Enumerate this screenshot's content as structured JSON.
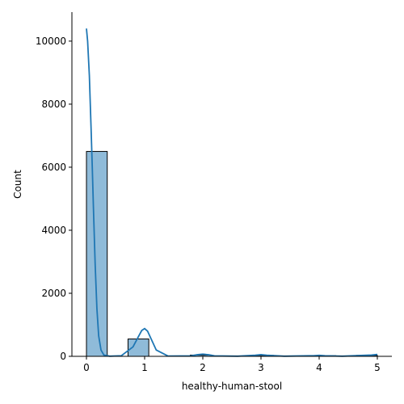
{
  "chart_data": {
    "type": "histogram",
    "xlabel": "healthy-human-stool",
    "ylabel": "Count",
    "bins": [
      0,
      0.3571,
      0.7143,
      1.0714,
      1.4286,
      1.7857,
      2.1429,
      2.5,
      2.8571,
      3.2143,
      3.5714,
      3.9286,
      4.2857,
      4.6429,
      5
    ],
    "counts": [
      6500,
      0,
      550,
      0,
      0,
      40,
      0,
      0,
      30,
      0,
      0,
      20,
      0,
      30
    ],
    "color": "#8fbbd9",
    "edgecolor": "#000000",
    "kde": {
      "color": "#1f77b4",
      "x": [
        0,
        0.02,
        0.05,
        0.08,
        0.1,
        0.12,
        0.15,
        0.18,
        0.21,
        0.25,
        0.3,
        0.4,
        0.6,
        0.8,
        0.9,
        0.95,
        1.0,
        1.05,
        1.1,
        1.2,
        1.4,
        1.8,
        1.9,
        2.0,
        2.1,
        2.2,
        2.6,
        2.9,
        3.0,
        3.1,
        3.4,
        3.9,
        4.0,
        4.1,
        4.4,
        4.9,
        5.0
      ],
      "values": [
        10400,
        10000,
        8900,
        7200,
        6000,
        4700,
        2900,
        1500,
        650,
        200,
        40,
        5,
        20,
        300,
        650,
        820,
        880,
        800,
        600,
        200,
        10,
        15,
        50,
        70,
        50,
        15,
        5,
        35,
        55,
        35,
        5,
        20,
        30,
        20,
        5,
        40,
        60
      ]
    },
    "xlim": [
      -0.25,
      5.25
    ],
    "ylim": [
      0,
      10920
    ],
    "xticks": [
      0,
      1,
      2,
      3,
      4,
      5
    ],
    "yticks": [
      0,
      2000,
      4000,
      6000,
      8000,
      10000
    ]
  }
}
